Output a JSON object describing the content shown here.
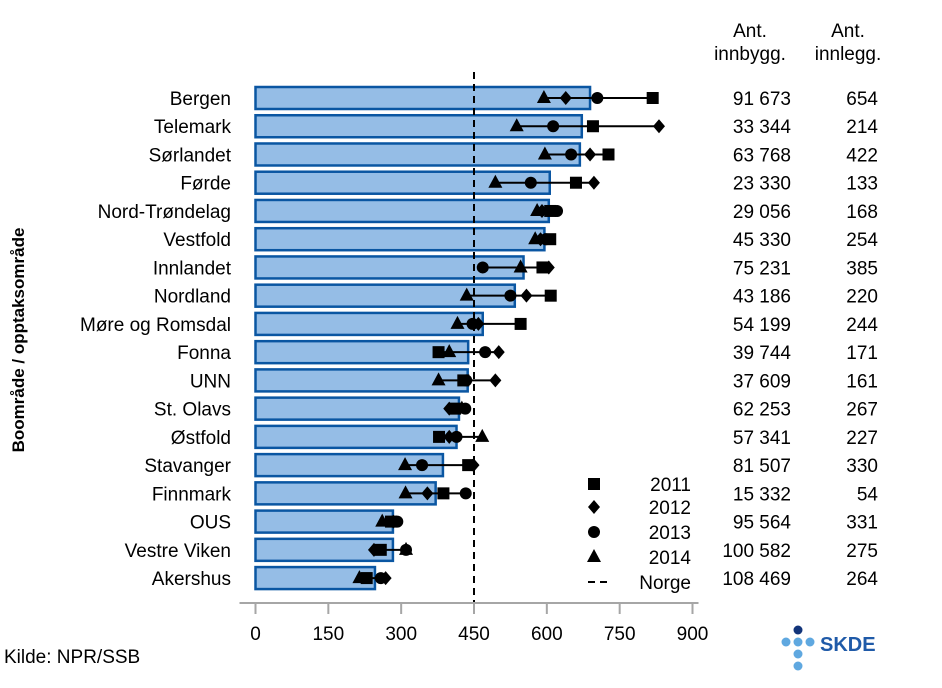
{
  "chart_data": {
    "type": "bar",
    "ylabel": "Boområde / opptaksområde",
    "xlim": [
      0,
      900
    ],
    "xticks": [
      "0",
      "150",
      "300",
      "450",
      "600",
      "750",
      "900"
    ],
    "reference_line": {
      "name": "Norge",
      "value": 450
    },
    "categories": [
      "Bergen",
      "Telemark",
      "Sørlandet",
      "Førde",
      "Nord-Trøndelag",
      "Vestfold",
      "Innlandet",
      "Nordland",
      "Møre og Romsdal",
      "Fonna",
      "UNN",
      "St. Olavs",
      "Østfold",
      "Stavanger",
      "Finnmark",
      "OUS",
      "Vestre Viken",
      "Akershus"
    ],
    "values": [
      689,
      672,
      668,
      606,
      604,
      595,
      552,
      534,
      468,
      438,
      437,
      419,
      414,
      386,
      371,
      283,
      283,
      246
    ],
    "series": [
      {
        "name": "2011",
        "marker": "square",
        "values": [
          818,
          695,
          727,
          660,
          607,
          607,
          591,
          608,
          546,
          377,
          428,
          411,
          378,
          438,
          387,
          279,
          258,
          229
        ]
      },
      {
        "name": "2012",
        "marker": "diamond",
        "values": [
          639,
          831,
          689,
          697,
          590,
          587,
          604,
          558,
          459,
          501,
          494,
          399,
          399,
          449,
          354,
          284,
          244,
          268
        ]
      },
      {
        "name": "2013",
        "marker": "circle",
        "values": [
          704,
          613,
          650,
          567,
          621,
          598,
          468,
          525,
          447,
          473,
          434,
          432,
          414,
          343,
          433,
          292,
          310,
          258
        ]
      },
      {
        "name": "2014",
        "marker": "triangle",
        "values": [
          594,
          538,
          596,
          494,
          580,
          576,
          546,
          435,
          416,
          399,
          377,
          425,
          467,
          308,
          309,
          261,
          310,
          214
        ]
      }
    ],
    "table": {
      "headers": [
        [
          "Ant.",
          "innbygg."
        ],
        [
          "Ant.",
          "innlegg."
        ]
      ],
      "innbyggere": [
        "91 673",
        "33 344",
        "63 768",
        "23 330",
        "29 056",
        "45 330",
        "75 231",
        "43 186",
        "54 199",
        "39 744",
        "37 609",
        "62 253",
        "57 341",
        "81 507",
        "15 332",
        "95 564",
        "100 582",
        "108 469"
      ],
      "innleggelser": [
        "654",
        "214",
        "422",
        "133",
        "168",
        "254",
        "385",
        "220",
        "244",
        "171",
        "161",
        "267",
        "227",
        "330",
        "54",
        "331",
        "275",
        "264"
      ]
    },
    "legend_position": "bottom-right",
    "colors": {
      "bar_fill": "#95bde6",
      "bar_stroke": "#0a56a2",
      "marker": "#000000",
      "axis": "#a6a6a6"
    }
  },
  "source": "Kilde: NPR/SSB",
  "logo": {
    "text": "SKDE",
    "color": "#1f5aa8",
    "dot_dark": "#12347a",
    "dot_light": "#5fa8e0"
  }
}
